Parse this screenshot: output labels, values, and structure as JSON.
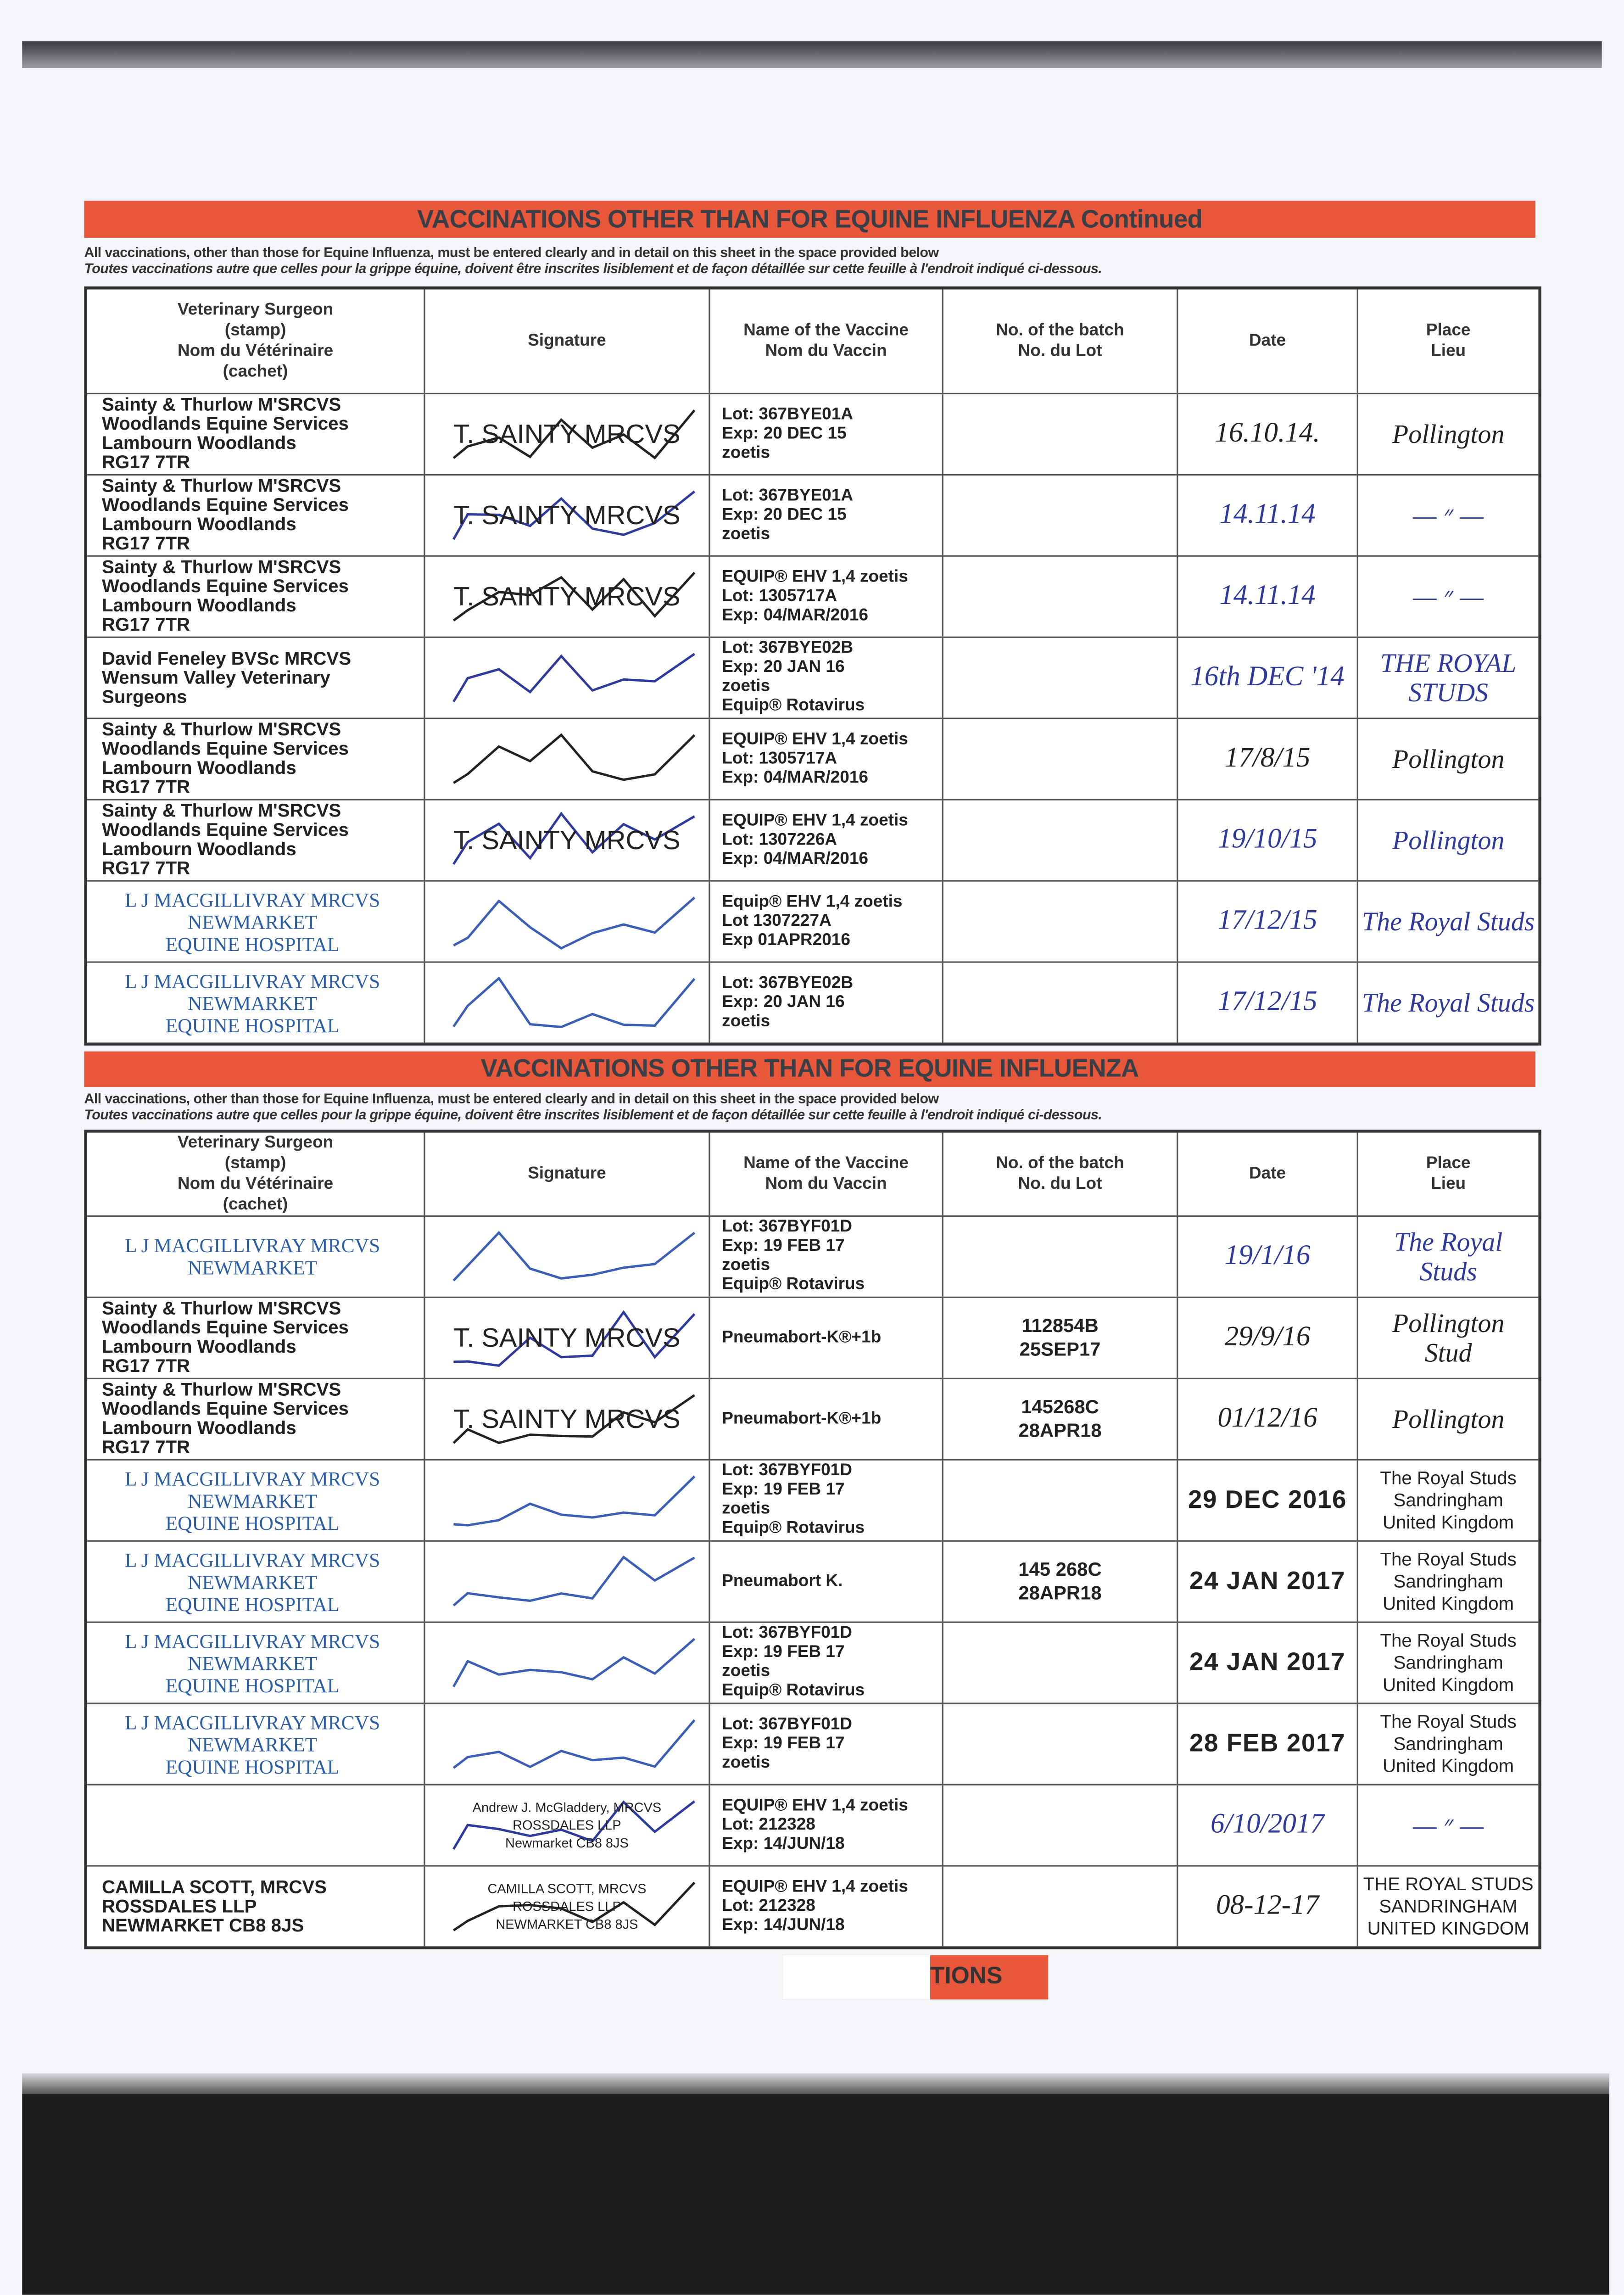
{
  "colors": {
    "banner": "#e9573a",
    "blue_ink": "#2e3a9c",
    "stamp_blue": "#2c5ea8"
  },
  "top_section": {
    "title": "VACCINATIONS OTHER THAN FOR EQUINE INFLUENZA Continued",
    "note_en": "All vaccinations, other than those for Equine Influenza, must be entered clearly and in detail on this sheet in the space provided below",
    "note_fr": "Toutes vaccinations autre que celles pour la grippe équine, doivent être inscrites lisiblement et de façon détaillée sur cette feuille à l'endroit indiqué ci-dessous.",
    "headers": [
      [
        "Veterinary Surgeon",
        "(stamp)",
        "Nom du Vétérinaire",
        "(cachet)"
      ],
      [
        "Signature"
      ],
      [
        "Name of the Vaccine",
        "Nom du Vaccin"
      ],
      [
        "No. of the batch",
        "No. du Lot"
      ],
      [
        "Date"
      ],
      [
        "Place",
        "Lieu"
      ]
    ],
    "rows": [
      {
        "vet": [
          "Sainty & Thurlow M'SRCVS",
          "Woodlands Equine Services",
          "Lambourn Woodlands",
          "RG17 7TR"
        ],
        "vet_ink": "black",
        "signature": [
          "T. SAINTY MRCVS"
        ],
        "vaccine": [
          "Lot: 367BYE01A",
          "Exp: 20 DEC 15",
          "zoetis"
        ],
        "batch": [],
        "date": "16.10.14.",
        "date_ink": "black",
        "place": [
          "Pollington"
        ],
        "place_ink": "black"
      },
      {
        "vet": [
          "Sainty & Thurlow M'SRCVS",
          "Woodlands Equine Services",
          "Lambourn Woodlands",
          "RG17 7TR"
        ],
        "vet_ink": "black",
        "signature": [
          "T. SAINTY MRCVS"
        ],
        "vaccine": [
          "Lot: 367BYE01A",
          "Exp: 20 DEC 15",
          "zoetis"
        ],
        "batch": [],
        "date": "14.11.14",
        "date_ink": "blue",
        "place": [
          "— ״ —"
        ],
        "place_ink": "blue"
      },
      {
        "vet": [
          "Sainty & Thurlow M'SRCVS",
          "Woodlands Equine Services",
          "Lambourn Woodlands",
          "RG17 7TR"
        ],
        "vet_ink": "black",
        "signature": [
          "T. SAINTY MRCVS"
        ],
        "vaccine": [
          "EQUIP® EHV 1,4 zoetis",
          "Lot: 1305717A",
          "Exp: 04/MAR/2016"
        ],
        "batch": [],
        "date": "14.11.14",
        "date_ink": "blue",
        "place": [
          "— ״ —"
        ],
        "place_ink": "blue"
      },
      {
        "vet": [
          "David Feneley BVSc MRCVS",
          "Wensum Valley Veterinary Surgeons"
        ],
        "vet_ink": "black",
        "signature": [],
        "vaccine": [
          "Lot: 367BYE02B",
          "Exp: 20 JAN 16",
          "zoetis",
          "Equip® Rotavirus"
        ],
        "batch": [],
        "date": "16th DEC '14",
        "date_ink": "blue",
        "place": [
          "THE ROYAL",
          "STUDS"
        ],
        "place_ink": "blue"
      },
      {
        "vet": [
          "Sainty & Thurlow M'SRCVS",
          "Woodlands Equine Services",
          "Lambourn Woodlands",
          "RG17 7TR"
        ],
        "vet_ink": "black",
        "signature": [],
        "vaccine": [
          "EQUIP® EHV 1,4 zoetis",
          "Lot: 1305717A",
          "Exp: 04/MAR/2016"
        ],
        "batch": [],
        "date": "17/8/15",
        "date_ink": "black",
        "place": [
          "Pollington"
        ],
        "place_ink": "black"
      },
      {
        "vet": [
          "Sainty & Thurlow M'SRCVS",
          "Woodlands Equine Services",
          "Lambourn Woodlands",
          "RG17 7TR"
        ],
        "vet_ink": "black",
        "signature": [
          "T. SAINTY MRCVS"
        ],
        "vaccine": [
          "EQUIP® EHV 1,4 zoetis",
          "Lot: 1307226A",
          "Exp: 04/MAR/2016"
        ],
        "batch": [],
        "date": "19/10/15",
        "date_ink": "blue",
        "place": [
          "Pollington"
        ],
        "place_ink": "blue"
      },
      {
        "vet": [
          "L J MACGILLIVRAY MRCVS",
          "NEWMARKET",
          "EQUINE HOSPITAL"
        ],
        "vet_ink": "blue",
        "signature": [],
        "vaccine": [
          "Equip® EHV 1,4 zoetis",
          "Lot 1307227A",
          "Exp 01APR2016"
        ],
        "batch": [],
        "date": "17/12/15",
        "date_ink": "blue",
        "place": [
          "The Royal Studs"
        ],
        "place_ink": "blue"
      },
      {
        "vet": [
          "L J MACGILLIVRAY MRCVS",
          "NEWMARKET",
          "EQUINE HOSPITAL"
        ],
        "vet_ink": "blue",
        "signature": [],
        "vaccine": [
          "Lot: 367BYE02B",
          "Exp: 20 JAN 16",
          "zoetis"
        ],
        "batch": [],
        "date": "17/12/15",
        "date_ink": "blue",
        "place": [
          "The Royal Studs"
        ],
        "place_ink": "blue"
      }
    ]
  },
  "bottom_section": {
    "title": "VACCINATIONS OTHER THAN FOR EQUINE INFLUENZA",
    "note_en": "All vaccinations, other than those for Equine Influenza, must be entered clearly and in detail on this sheet in the space provided below",
    "note_fr": "Toutes vaccinations autre que celles pour la grippe équine, doivent être inscrites lisiblement et de façon détaillée sur cette feuille à l'endroit indiqué ci-dessous.",
    "headers": [
      [
        "Veterinary Surgeon",
        "(stamp)",
        "Nom du Vétérinaire",
        "(cachet)"
      ],
      [
        "Signature"
      ],
      [
        "Name of the Vaccine",
        "Nom du Vaccin"
      ],
      [
        "No. of the batch",
        "No. du Lot"
      ],
      [
        "Date"
      ],
      [
        "Place",
        "Lieu"
      ]
    ],
    "rows": [
      {
        "vet": [
          "L J MACGILLIVRAY MRCVS",
          "NEWMARKET"
        ],
        "vet_ink": "blue",
        "signature": [],
        "vaccine": [
          "Lot: 367BYF01D",
          "Exp: 19 FEB 17",
          "zoetis",
          "Equip® Rotavirus"
        ],
        "batch": [],
        "date": "19/1/16",
        "date_ink": "blue",
        "place": [
          "The Royal",
          "Studs"
        ],
        "place_ink": "blue"
      },
      {
        "vet": [
          "Sainty & Thurlow M'SRCVS",
          "Woodlands Equine Services",
          "Lambourn Woodlands",
          "RG17 7TR"
        ],
        "vet_ink": "black",
        "signature": [
          "T. SAINTY MRCVS"
        ],
        "vaccine": [
          "Pneumabort-K®+1b"
        ],
        "batch": [
          "112854B",
          "25SEP17"
        ],
        "date": "29/9/16",
        "date_ink": "black",
        "place": [
          "Pollington",
          "Stud"
        ],
        "place_ink": "black"
      },
      {
        "vet": [
          "Sainty & Thurlow M'SRCVS",
          "Woodlands Equine Services",
          "Lambourn Woodlands",
          "RG17 7TR"
        ],
        "vet_ink": "black",
        "signature": [
          "T. SAINTY MRCVS"
        ],
        "vaccine": [
          "Pneumabort-K®+1b"
        ],
        "batch": [
          "145268C",
          "28APR18"
        ],
        "date": "01/12/16",
        "date_ink": "black",
        "place": [
          "Pollington"
        ],
        "place_ink": "black"
      },
      {
        "vet": [
          "L J MACGILLIVRAY MRCVS",
          "NEWMARKET",
          "EQUINE HOSPITAL"
        ],
        "vet_ink": "blue",
        "signature": [],
        "vaccine": [
          "Lot: 367BYF01D",
          "Exp: 19 FEB 17",
          "zoetis",
          "Equip® Rotavirus"
        ],
        "batch": [],
        "date": "29 DEC 2016",
        "date_ink": "stamp",
        "place": [
          "The Royal Studs",
          "Sandringham",
          "United Kingdom"
        ],
        "place_ink": "stamp"
      },
      {
        "vet": [
          "L J MACGILLIVRAY MRCVS",
          "NEWMARKET",
          "EQUINE HOSPITAL"
        ],
        "vet_ink": "blue",
        "signature": [],
        "vaccine": [
          "Pneumabort K."
        ],
        "batch": [
          "145 268C",
          "28APR18"
        ],
        "date": "24 JAN 2017",
        "date_ink": "stamp",
        "place": [
          "The Royal Studs",
          "Sandringham",
          "United Kingdom"
        ],
        "place_ink": "stamp"
      },
      {
        "vet": [
          "L J MACGILLIVRAY MRCVS",
          "NEWMARKET",
          "EQUINE HOSPITAL"
        ],
        "vet_ink": "blue",
        "signature": [],
        "vaccine": [
          "Lot: 367BYF01D",
          "Exp: 19 FEB 17",
          "zoetis",
          "Equip® Rotavirus"
        ],
        "batch": [],
        "date": "24 JAN 2017",
        "date_ink": "stamp",
        "place": [
          "The Royal Studs",
          "Sandringham",
          "United Kingdom"
        ],
        "place_ink": "stamp"
      },
      {
        "vet": [
          "L J MACGILLIVRAY MRCVS",
          "NEWMARKET",
          "EQUINE HOSPITAL"
        ],
        "vet_ink": "blue",
        "signature": [],
        "vaccine": [
          "Lot: 367BYF01D",
          "Exp: 19 FEB 17",
          "zoetis"
        ],
        "batch": [],
        "date": "28 FEB 2017",
        "date_ink": "stamp",
        "place": [
          "The Royal Studs",
          "Sandringham",
          "United Kingdom"
        ],
        "place_ink": "stamp"
      },
      {
        "vet": [],
        "vet_ink": "black",
        "signature": [
          "Andrew J. McGladdery, MRCVS",
          "ROSSDALES LLP",
          "Newmarket CB8 8JS"
        ],
        "vaccine": [
          "EQUIP® EHV 1,4 zoetis",
          "Lot: 212328",
          "Exp: 14/JUN/18"
        ],
        "batch": [],
        "date": "6/10/2017",
        "date_ink": "blue",
        "place": [
          "— ״ —"
        ],
        "place_ink": "blue"
      },
      {
        "vet": [
          "CAMILLA SCOTT, MRCVS",
          "ROSSDALES LLP",
          "NEWMARKET CB8 8JS"
        ],
        "vet_ink": "black",
        "signature": [
          "CAMILLA SCOTT, MRCVS",
          "ROSSDALES LLP",
          "NEWMARKET CB8 8JS"
        ],
        "vaccine": [
          "EQUIP® EHV 1,4 zoetis",
          "Lot: 212328",
          "Exp: 14/JUN/18"
        ],
        "batch": [],
        "date": "08-12-17",
        "date_ink": "black",
        "place": [
          "THE ROYAL STUDS",
          "SANDRINGHAM",
          "UNITED KINGDOM"
        ],
        "place_ink": "stamp"
      }
    ]
  },
  "footer_fragment": "TIONS"
}
